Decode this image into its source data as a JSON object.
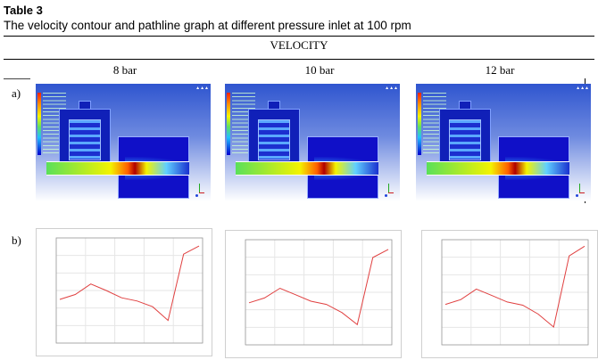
{
  "caption": {
    "label": "Table 3",
    "text": "The velocity contour and pathline graph at different pressure inlet at 100 rpm"
  },
  "table": {
    "group_header": "VELOCITY",
    "columns": [
      "8 bar",
      "10 bar",
      "12 bar"
    ],
    "rows": [
      {
        "label": "a)",
        "kind": "velocity-contour"
      },
      {
        "label": "b)",
        "kind": "velocity-graph"
      }
    ]
  },
  "chart_data": [
    {
      "type": "line",
      "pressure": "8 bar",
      "values": [
        0.54,
        0.6,
        0.73,
        0.65,
        0.56,
        0.52,
        0.45,
        0.28,
        1.1,
        1.2
      ],
      "color": "#e04040"
    },
    {
      "type": "line",
      "pressure": "10 bar",
      "values": [
        0.52,
        0.58,
        0.7,
        0.62,
        0.54,
        0.5,
        0.4,
        0.25,
        1.08,
        1.18
      ],
      "color": "#e04040"
    },
    {
      "type": "line",
      "pressure": "12 bar",
      "values": [
        0.5,
        0.56,
        0.69,
        0.61,
        0.53,
        0.49,
        0.38,
        0.22,
        1.1,
        1.22
      ],
      "color": "#e04040"
    }
  ]
}
